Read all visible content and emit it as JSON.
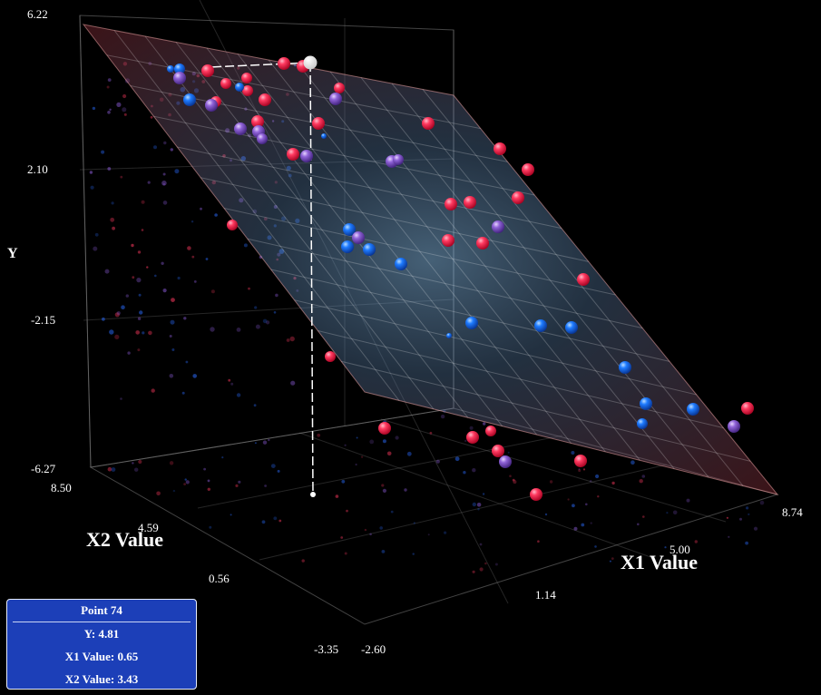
{
  "chart_data": {
    "type": "scatter",
    "title": "",
    "plot_3d": true,
    "axes": {
      "y": {
        "label": "Y",
        "ticks": [
          "6.22",
          "2.10",
          "-2.15",
          "-6.27"
        ],
        "range": [
          -6.27,
          6.22
        ]
      },
      "x1": {
        "label": "X1 Value",
        "ticks": [
          "-2.60",
          "1.14",
          "5.00",
          "8.74"
        ],
        "range": [
          -2.6,
          8.74
        ]
      },
      "x2": {
        "label": "X2 Value",
        "ticks": [
          "-3.35",
          "0.56",
          "4.59",
          "8.50"
        ],
        "range": [
          -3.35,
          8.5
        ]
      }
    },
    "regression_plane": {
      "shown": true,
      "grid": true
    },
    "series": [
      {
        "name": "red",
        "color": "#ff2a55"
      },
      {
        "name": "blue",
        "color": "#1a6cff"
      },
      {
        "name": "purple",
        "color": "#8a5bd6"
      }
    ],
    "highlighted_point": {
      "index": 74,
      "y": 4.81,
      "x1": 0.65,
      "x2": 3.43
    },
    "tooltip": {
      "title": "Point 74",
      "y": "Y: 4.81",
      "x1": "X1 Value: 0.65",
      "x2": "X2 Value: 3.43"
    }
  },
  "colors": {
    "background": "#000000",
    "tooltip_bg": "#1c3fb8",
    "plane_edge": "#ffb0b0",
    "highlight": "#ffffff"
  }
}
